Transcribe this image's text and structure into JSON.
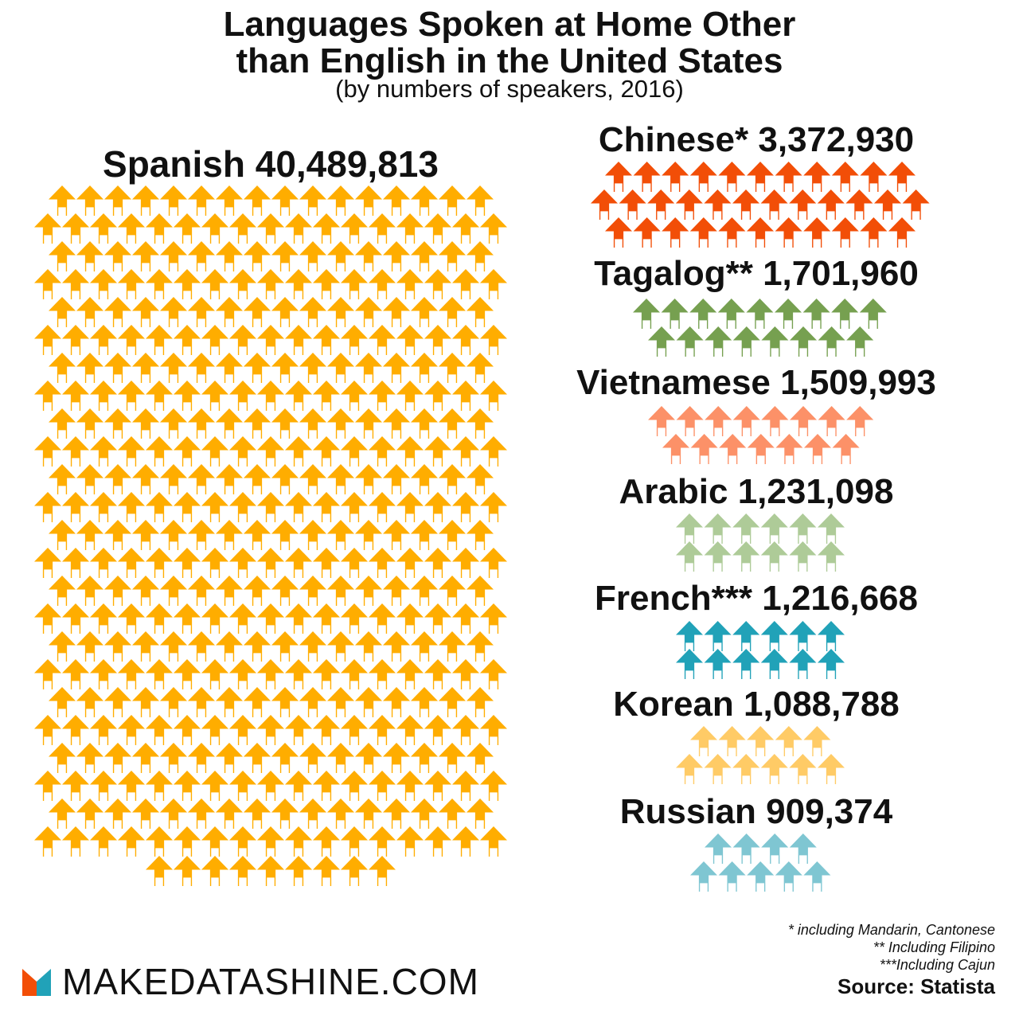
{
  "title_line1": "Languages Spoken at Home Other",
  "title_line2": "than English in the United States",
  "subtitle": "(by numbers of speakers, 2016)",
  "chart_data": {
    "type": "pictogram",
    "series": [
      {
        "name": "Spanish",
        "marker": "",
        "label": "Spanish 40,489,813",
        "value": 40489813,
        "icons": 405,
        "color": "#FFAD00"
      },
      {
        "name": "Chinese",
        "marker": "*",
        "label": "Chinese* 3,372,930",
        "value": 3372930,
        "icons": 34,
        "color": "#F24E07"
      },
      {
        "name": "Tagalog",
        "marker": "**",
        "label": "Tagalog** 1,701,960",
        "value": 1701960,
        "icons": 17,
        "color": "#76A050"
      },
      {
        "name": "Vietnamese",
        "marker": "",
        "label": "Vietnamese 1,509,993",
        "value": 1509993,
        "icons": 15,
        "color": "#FC9168"
      },
      {
        "name": "Arabic",
        "marker": "",
        "label": "Arabic 1,231,098",
        "value": 1231098,
        "icons": 12,
        "color": "#AECB98"
      },
      {
        "name": "French",
        "marker": "***",
        "label": "French*** 1,216,668",
        "value": 1216668,
        "icons": 12,
        "color": "#21A2B8"
      },
      {
        "name": "Korean",
        "marker": "",
        "label": "Korean 1,088,788",
        "value": 1088788,
        "icons": 11,
        "color": "#FFCB66"
      },
      {
        "name": "Russian",
        "marker": "",
        "label": "Russian 909,374",
        "value": 909374,
        "icons": 9,
        "color": "#7FC6D2"
      }
    ],
    "icon": "house-icon"
  },
  "footnotes": [
    "* including Mandarin, Cantonese",
    "** Including Filipino",
    "***Including Cajun"
  ],
  "source": "Source:  Statista",
  "brand": {
    "name": "MAKEDATASHINE.COM",
    "logo_colors": [
      "#F24E07",
      "#21A2B8"
    ]
  }
}
